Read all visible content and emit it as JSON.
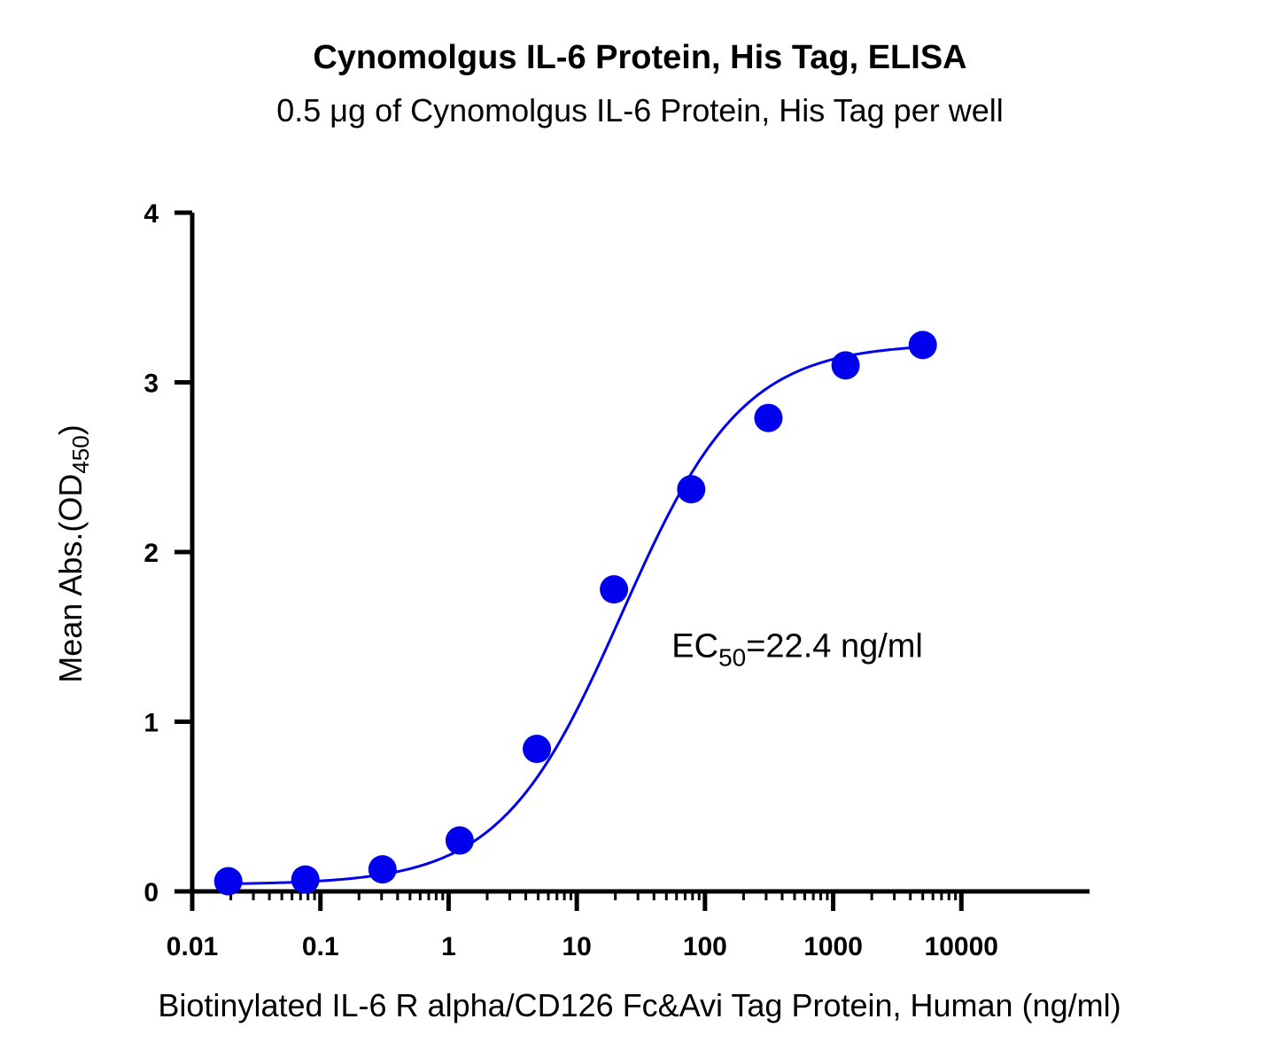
{
  "chart_data": {
    "type": "scatter",
    "title": "Cynomolgus IL-6 Protein, His Tag, ELISA",
    "subtitle": "0.5 μg of Cynomolgus IL-6 Protein, His Tag per well",
    "xlabel": "Biotinylated IL-6 R alpha/CD126 Fc&Avi Tag Protein, Human (ng/ml)",
    "ylabel_main": "Mean Abs.(OD",
    "ylabel_sub": "450",
    "ylabel_close": ")",
    "x_scale": "log",
    "xlim": [
      0.01,
      100000
    ],
    "ylim": [
      0,
      4
    ],
    "x_ticks": [
      0.01,
      0.1,
      1,
      10,
      100,
      1000,
      10000
    ],
    "x_tick_labels": [
      "0.01",
      "0.1",
      "1",
      "10",
      "100",
      "1000",
      "10000"
    ],
    "y_ticks": [
      0,
      1,
      2,
      3,
      4
    ],
    "y_tick_labels": [
      "0",
      "1",
      "2",
      "3",
      "4"
    ],
    "grid": false,
    "series_color": "#0000ee",
    "x": [
      0.0191,
      0.0763,
      0.305,
      1.22,
      4.88,
      19.5,
      78.1,
      312.5,
      1250,
      5000
    ],
    "y": [
      0.06,
      0.07,
      0.13,
      0.3,
      0.84,
      1.78,
      2.37,
      2.79,
      3.1,
      3.22
    ],
    "fit": {
      "model": "4PL",
      "bottom": 0.04,
      "top": 3.23,
      "ec50": 22.4,
      "hill": 0.92
    },
    "annotation": {
      "prefix": "EC",
      "sub": "50",
      "suffix": "=22.4 ng/ml",
      "x": 55,
      "y": 1.38
    }
  }
}
